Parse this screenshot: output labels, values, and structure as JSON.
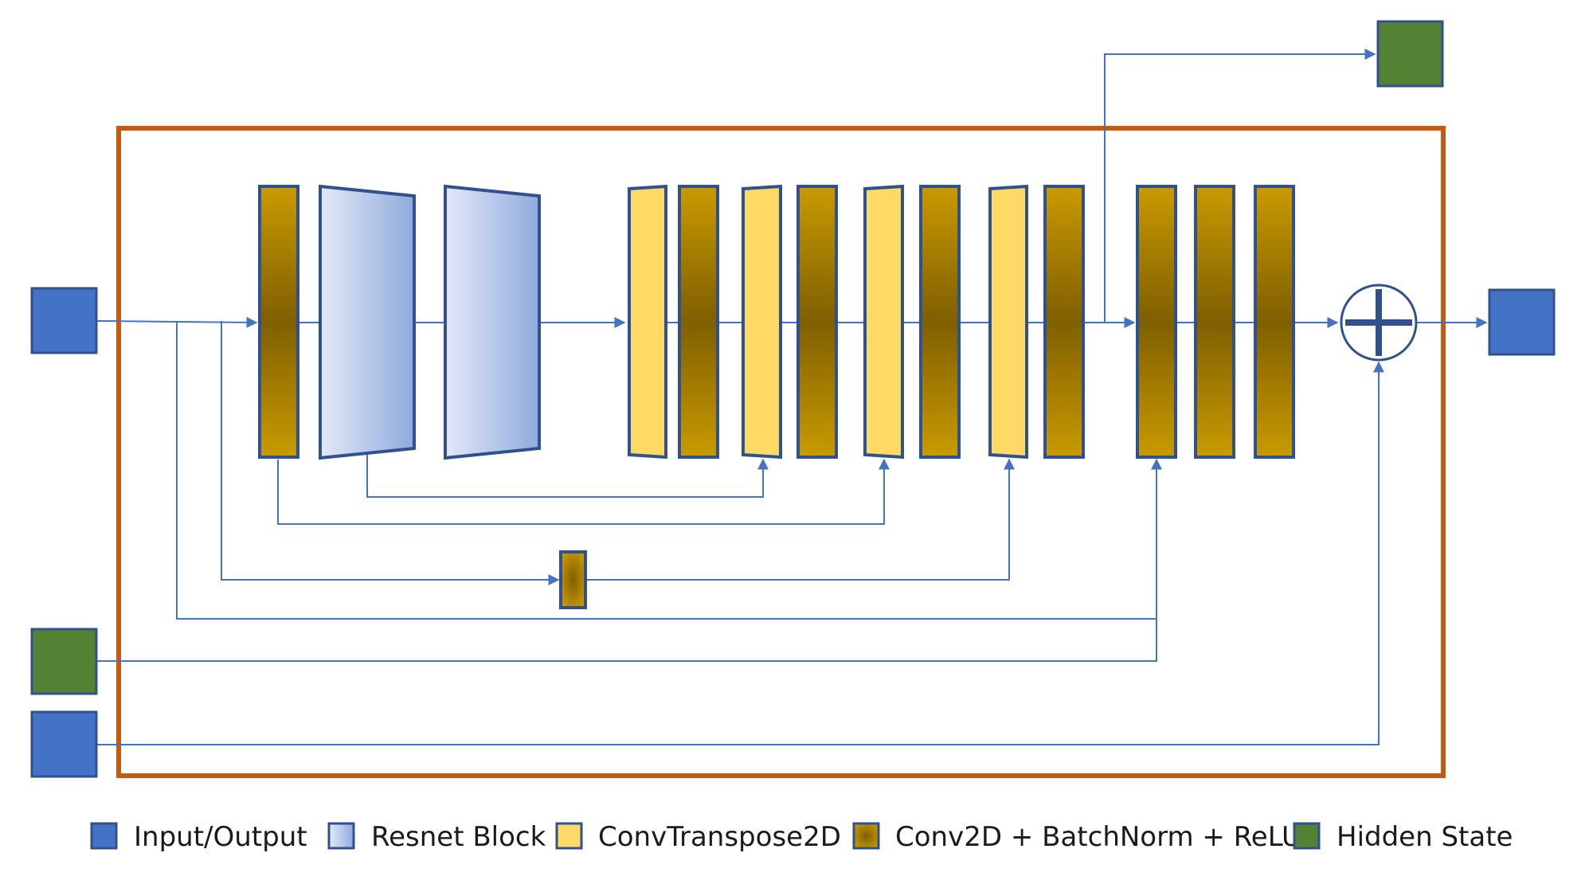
{
  "legend": {
    "items": [
      {
        "key": "io",
        "label": "Input/Output"
      },
      {
        "key": "resnet",
        "label": "Resnet Block"
      },
      {
        "key": "convt",
        "label": "ConvTranspose2D"
      },
      {
        "key": "conv",
        "label": "Conv2D + BatchNorm + ReLU"
      },
      {
        "key": "hidden",
        "label": "Hidden State"
      }
    ]
  },
  "colors": {
    "frame": "#c55a11",
    "connector": "#4472c4",
    "io_fill": "#4472c4",
    "io_stroke": "#2f528f",
    "hidden_fill": "#548235",
    "hidden_stroke": "#2f528f",
    "convt_fill": "#ffd966",
    "conv_edge": "#c99a00",
    "conv_center": "#7f5f00",
    "resnet_light": "#dce3f6",
    "resnet_dark": "#8faadc",
    "block_stroke": "#2f528f"
  }
}
